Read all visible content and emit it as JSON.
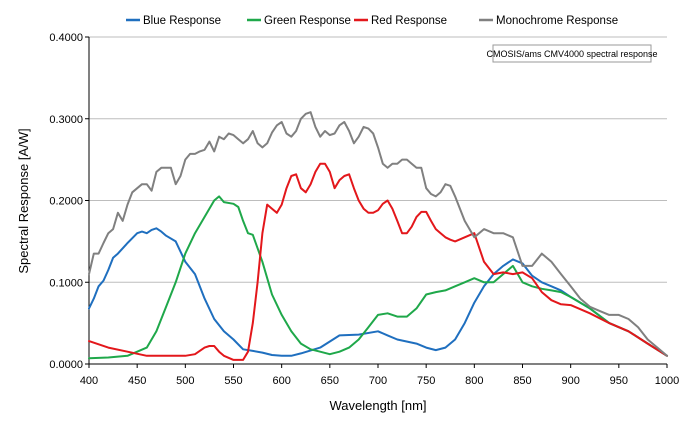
{
  "chart_data": {
    "type": "line",
    "xlabel": "Wavelength [nm]",
    "ylabel": "Spectral Response [A/W]",
    "xlim": [
      400,
      1000
    ],
    "ylim": [
      0,
      0.4
    ],
    "x_ticks": [
      "400",
      "450",
      "500",
      "550",
      "600",
      "650",
      "700",
      "750",
      "800",
      "850",
      "900",
      "950",
      "1000"
    ],
    "y_ticks": [
      "0.0000",
      "0.1000",
      "0.2000",
      "0.3000",
      "0.4000"
    ],
    "grid": "horizontal",
    "legend_position": "top",
    "annotation": "CMOSIS/ams CMV4000 spectral response",
    "series": [
      {
        "name": "Blue Response",
        "color": "#1f6fbf",
        "x": [
          400,
          405,
          410,
          415,
          420,
          425,
          430,
          440,
          450,
          455,
          460,
          465,
          470,
          475,
          480,
          490,
          500,
          510,
          520,
          530,
          540,
          550,
          560,
          570,
          580,
          590,
          600,
          610,
          620,
          640,
          660,
          680,
          700,
          710,
          720,
          740,
          750,
          760,
          770,
          780,
          790,
          800,
          810,
          820,
          830,
          840,
          850,
          860,
          870,
          880,
          890,
          900,
          920,
          940,
          960,
          980,
          1000
        ],
        "y": [
          0.068,
          0.08,
          0.095,
          0.102,
          0.115,
          0.13,
          0.135,
          0.148,
          0.16,
          0.162,
          0.16,
          0.164,
          0.166,
          0.162,
          0.157,
          0.15,
          0.125,
          0.11,
          0.08,
          0.055,
          0.04,
          0.03,
          0.018,
          0.016,
          0.014,
          0.011,
          0.01,
          0.01,
          0.013,
          0.02,
          0.035,
          0.036,
          0.04,
          0.035,
          0.03,
          0.025,
          0.02,
          0.017,
          0.02,
          0.03,
          0.05,
          0.075,
          0.095,
          0.11,
          0.12,
          0.128,
          0.123,
          0.108,
          0.1,
          0.095,
          0.09,
          0.082,
          0.068,
          0.05,
          0.04,
          0.025,
          0.01
        ]
      },
      {
        "name": "Green Response",
        "color": "#1fa84a",
        "x": [
          400,
          420,
          440,
          460,
          470,
          480,
          490,
          500,
          510,
          520,
          530,
          535,
          540,
          550,
          555,
          560,
          565,
          570,
          580,
          590,
          600,
          610,
          620,
          630,
          640,
          650,
          660,
          670,
          680,
          690,
          700,
          710,
          720,
          730,
          740,
          750,
          760,
          770,
          780,
          790,
          800,
          810,
          820,
          830,
          840,
          850,
          860,
          870,
          880,
          890,
          900,
          920,
          940,
          960,
          980,
          1000
        ],
        "y": [
          0.007,
          0.008,
          0.01,
          0.02,
          0.04,
          0.07,
          0.1,
          0.135,
          0.16,
          0.18,
          0.2,
          0.205,
          0.198,
          0.196,
          0.192,
          0.175,
          0.16,
          0.158,
          0.125,
          0.085,
          0.06,
          0.04,
          0.025,
          0.018,
          0.015,
          0.012,
          0.015,
          0.02,
          0.03,
          0.045,
          0.06,
          0.062,
          0.058,
          0.058,
          0.068,
          0.085,
          0.088,
          0.09,
          0.095,
          0.1,
          0.105,
          0.1,
          0.1,
          0.11,
          0.12,
          0.1,
          0.095,
          0.092,
          0.09,
          0.088,
          0.082,
          0.068,
          0.05,
          0.04,
          0.025,
          0.01
        ]
      },
      {
        "name": "Red Response",
        "color": "#e3171b",
        "x": [
          400,
          420,
          440,
          460,
          480,
          500,
          510,
          520,
          525,
          530,
          535,
          540,
          550,
          560,
          565,
          570,
          575,
          580,
          585,
          590,
          595,
          600,
          605,
          610,
          615,
          620,
          625,
          630,
          635,
          640,
          645,
          650,
          655,
          660,
          665,
          670,
          675,
          680,
          685,
          690,
          695,
          700,
          705,
          710,
          715,
          720,
          725,
          730,
          735,
          740,
          745,
          750,
          755,
          760,
          765,
          770,
          775,
          780,
          790,
          800,
          810,
          820,
          830,
          840,
          850,
          860,
          870,
          880,
          890,
          900,
          920,
          940,
          960,
          980,
          1000
        ],
        "y": [
          0.028,
          0.02,
          0.015,
          0.01,
          0.01,
          0.01,
          0.012,
          0.02,
          0.022,
          0.022,
          0.015,
          0.01,
          0.005,
          0.005,
          0.015,
          0.05,
          0.1,
          0.16,
          0.195,
          0.19,
          0.185,
          0.195,
          0.215,
          0.23,
          0.232,
          0.215,
          0.21,
          0.22,
          0.235,
          0.245,
          0.245,
          0.235,
          0.215,
          0.225,
          0.23,
          0.232,
          0.215,
          0.2,
          0.19,
          0.185,
          0.185,
          0.188,
          0.196,
          0.2,
          0.19,
          0.175,
          0.16,
          0.16,
          0.168,
          0.18,
          0.186,
          0.186,
          0.175,
          0.165,
          0.16,
          0.155,
          0.152,
          0.15,
          0.155,
          0.16,
          0.125,
          0.11,
          0.112,
          0.11,
          0.112,
          0.105,
          0.088,
          0.078,
          0.073,
          0.072,
          0.062,
          0.05,
          0.04,
          0.025,
          0.01
        ]
      },
      {
        "name": "Monochrome Response",
        "color": "#808080",
        "x": [
          400,
          405,
          410,
          415,
          420,
          425,
          430,
          435,
          440,
          445,
          450,
          455,
          460,
          465,
          470,
          475,
          480,
          485,
          490,
          495,
          500,
          505,
          510,
          515,
          520,
          525,
          530,
          535,
          540,
          545,
          550,
          555,
          560,
          565,
          570,
          575,
          580,
          585,
          590,
          595,
          600,
          605,
          610,
          615,
          620,
          625,
          630,
          635,
          640,
          645,
          650,
          655,
          660,
          665,
          670,
          675,
          680,
          685,
          690,
          695,
          700,
          705,
          710,
          715,
          720,
          725,
          730,
          735,
          740,
          745,
          750,
          755,
          760,
          765,
          770,
          775,
          780,
          790,
          800,
          810,
          820,
          830,
          840,
          850,
          860,
          870,
          880,
          890,
          900,
          910,
          920,
          930,
          940,
          950,
          960,
          970,
          980,
          990,
          1000
        ],
        "y": [
          0.11,
          0.135,
          0.135,
          0.148,
          0.16,
          0.165,
          0.185,
          0.175,
          0.195,
          0.21,
          0.215,
          0.22,
          0.22,
          0.212,
          0.235,
          0.24,
          0.24,
          0.24,
          0.22,
          0.23,
          0.25,
          0.257,
          0.257,
          0.26,
          0.262,
          0.272,
          0.26,
          0.278,
          0.275,
          0.282,
          0.28,
          0.275,
          0.27,
          0.275,
          0.285,
          0.27,
          0.265,
          0.27,
          0.283,
          0.292,
          0.296,
          0.282,
          0.278,
          0.285,
          0.3,
          0.306,
          0.308,
          0.29,
          0.278,
          0.285,
          0.28,
          0.282,
          0.292,
          0.296,
          0.285,
          0.27,
          0.278,
          0.29,
          0.288,
          0.282,
          0.265,
          0.245,
          0.24,
          0.245,
          0.245,
          0.25,
          0.25,
          0.245,
          0.24,
          0.24,
          0.215,
          0.208,
          0.205,
          0.21,
          0.22,
          0.218,
          0.205,
          0.175,
          0.155,
          0.165,
          0.16,
          0.16,
          0.155,
          0.12,
          0.12,
          0.135,
          0.125,
          0.11,
          0.095,
          0.08,
          0.07,
          0.065,
          0.06,
          0.06,
          0.055,
          0.045,
          0.03,
          0.02,
          0.01
        ]
      }
    ]
  }
}
